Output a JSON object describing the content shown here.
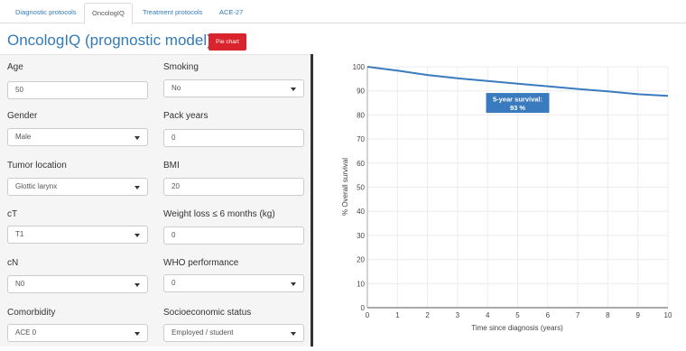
{
  "tabs": [
    "Diagnostic protocols",
    "OncologIQ",
    "Treatment protocols",
    "ACE-27"
  ],
  "active_tab": 1,
  "header": {
    "title": "OncologIQ (prognostic model)",
    "pie_chart_button": "Pie chart"
  },
  "form": {
    "age": {
      "label": "Age",
      "value": "50"
    },
    "gender": {
      "label": "Gender",
      "value": "Male"
    },
    "tumor_location": {
      "label": "Tumor location",
      "value": "Glottic larynx"
    },
    "ct": {
      "label": "cT",
      "value": "T1"
    },
    "cn": {
      "label": "cN",
      "value": "N0"
    },
    "comorbidity": {
      "label": "Comorbidity",
      "value": "ACE 0"
    },
    "smoking": {
      "label": "Smoking",
      "value": "No"
    },
    "pack_years": {
      "label": "Pack years",
      "value": "0"
    },
    "bmi": {
      "label": "BMI",
      "value": "20"
    },
    "weight_loss": {
      "label": "Weight loss ≤ 6 months (kg)",
      "value": "0"
    },
    "who_performance": {
      "label": "WHO performance",
      "value": "0"
    },
    "socioeconomic": {
      "label": "Socioeconomic status",
      "value": "Employed / student"
    }
  },
  "chart_data": {
    "type": "line",
    "xlabel": "Time since diagnosis (years)",
    "ylabel": "% Overall survival",
    "xlim": [
      0,
      10
    ],
    "ylim": [
      0,
      100
    ],
    "x_ticks": [
      0,
      1,
      2,
      3,
      4,
      5,
      6,
      7,
      8,
      9,
      10
    ],
    "y_ticks": [
      0,
      10,
      20,
      30,
      40,
      50,
      60,
      70,
      80,
      90,
      100
    ],
    "grid": true,
    "series": [
      {
        "x": [
          0,
          1,
          2,
          3,
          4,
          5,
          6,
          7,
          8,
          9,
          10
        ],
        "y": [
          100,
          98.4,
          96.6,
          95.2,
          94.1,
          93,
          91.9,
          90.8,
          89.8,
          88.6,
          87.9
        ],
        "color": "#3a7bbf"
      }
    ],
    "annotation": {
      "line1": "5-year survival:",
      "line2": "93 %",
      "x": 5,
      "y": 85,
      "color": "#3a7bbf"
    }
  }
}
